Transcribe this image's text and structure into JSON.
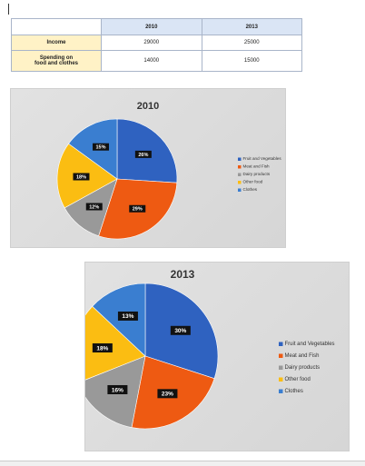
{
  "table": {
    "headers": [
      "",
      "2010",
      "2013"
    ],
    "rows": [
      {
        "label": "Income",
        "v2010": "29000",
        "v2013": "25000"
      },
      {
        "label_line1": "Spending on",
        "label_line2": "food and clothes",
        "v2010": "14000",
        "v2013": "15000"
      }
    ]
  },
  "chart_data": [
    {
      "type": "pie",
      "title": "2010",
      "legend_position": "right",
      "slices": [
        {
          "name": "Fruit and Vegetables",
          "value": 26,
          "label": "26%",
          "color": "#2f62c0"
        },
        {
          "name": "Meat and Fish",
          "value": 29,
          "label": "29%",
          "color": "#ee5a12"
        },
        {
          "name": "Dairy products",
          "value": 12,
          "label": "12%",
          "color": "#999999"
        },
        {
          "name": "Other food",
          "value": 18,
          "label": "18%",
          "color": "#fbbd12"
        },
        {
          "name": "Clothes",
          "value": 15,
          "label": "15%",
          "color": "#3a7ed0"
        }
      ]
    },
    {
      "type": "pie",
      "title": "2013",
      "legend_position": "right",
      "slices": [
        {
          "name": "Fruit and Vegetables",
          "value": 30,
          "label": "30%",
          "color": "#2f62c0"
        },
        {
          "name": "Meat and Fish",
          "value": 23,
          "label": "23%",
          "color": "#ee5a12"
        },
        {
          "name": "Dairy products",
          "value": 16,
          "label": "16%",
          "color": "#999999"
        },
        {
          "name": "Other food",
          "value": 18,
          "label": "18%",
          "color": "#fbbd12"
        },
        {
          "name": "Clothes",
          "value": 13,
          "label": "13%",
          "color": "#3a7ed0"
        }
      ]
    }
  ]
}
